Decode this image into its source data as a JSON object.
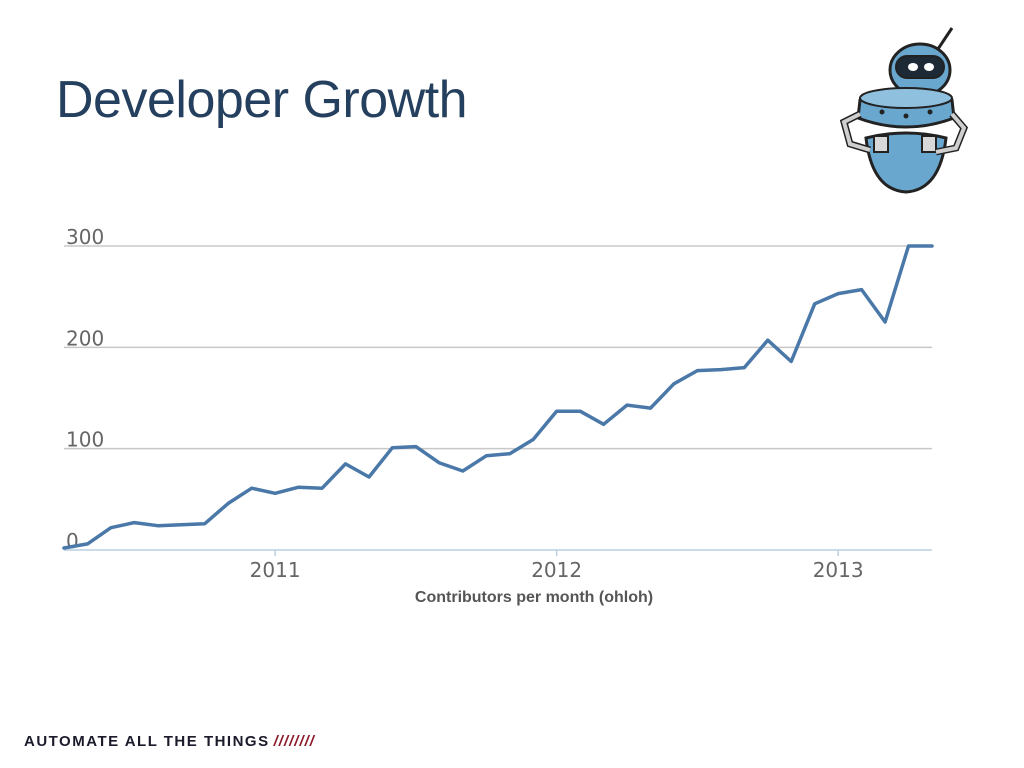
{
  "slide": {
    "title": "Developer Growth",
    "caption": "Contributors per month (ohloh)",
    "footer": {
      "tagline": "AUTOMATE ALL THE THINGS",
      "slashes": "////////"
    },
    "mascot_icon": "robot-icon"
  },
  "colors": {
    "title": "#25405f",
    "line": "#4a78a8",
    "grid": "#c8c8c8",
    "footer_accent": "#8b1a2b"
  },
  "chart_data": {
    "type": "line",
    "title": "",
    "xlabel": "",
    "ylabel": "",
    "ylim": [
      0,
      300
    ],
    "yticks": [
      0,
      100,
      200,
      300
    ],
    "ytick_labels": [
      "0",
      "100",
      "200",
      "300"
    ],
    "xlim": [
      "2010-04",
      "2013-05"
    ],
    "xticks": [
      "2011-01",
      "2012-01",
      "2013-01"
    ],
    "xtick_labels": [
      "2011",
      "2012",
      "2013"
    ],
    "grid": true,
    "legend": "none",
    "series": [
      {
        "x": [
          "2010-04",
          "2010-05",
          "2010-06",
          "2010-07",
          "2010-08",
          "2010-09",
          "2010-10",
          "2010-11",
          "2010-12",
          "2011-01",
          "2011-02",
          "2011-03",
          "2011-04",
          "2011-05",
          "2011-06",
          "2011-07",
          "2011-08",
          "2011-09",
          "2011-10",
          "2011-11",
          "2011-12",
          "2012-01",
          "2012-02",
          "2012-03",
          "2012-04",
          "2012-05",
          "2012-06",
          "2012-07",
          "2012-08",
          "2012-09",
          "2012-10",
          "2012-11",
          "2012-12",
          "2013-01",
          "2013-02",
          "2013-03",
          "2013-04",
          "2013-05"
        ],
        "values": [
          2,
          6,
          22,
          27,
          24,
          25,
          26,
          46,
          61,
          56,
          62,
          61,
          85,
          72,
          101,
          102,
          86,
          78,
          93,
          95,
          109,
          137,
          137,
          124,
          143,
          140,
          164,
          177,
          178,
          180,
          207,
          186,
          243,
          253,
          257,
          225,
          300,
          300
        ]
      }
    ]
  }
}
